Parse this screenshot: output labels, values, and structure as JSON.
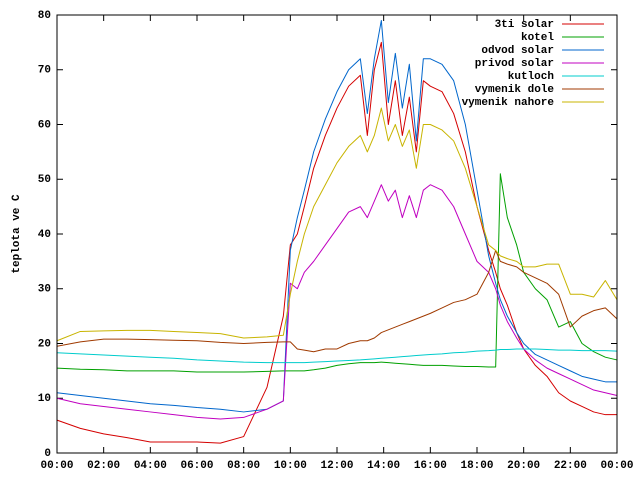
{
  "chart_data": {
    "type": "line",
    "ylabel": "teplota ve C",
    "x": [
      0,
      1,
      2,
      3,
      4,
      5,
      6,
      7,
      8,
      9,
      9.7,
      10,
      10.3,
      10.6,
      11,
      11.5,
      12,
      12.5,
      13,
      13.3,
      13.6,
      13.9,
      14.2,
      14.5,
      14.8,
      15.1,
      15.4,
      15.7,
      16,
      16.5,
      17,
      17.5,
      18,
      18.5,
      18.8,
      19,
      19.3,
      19.7,
      20,
      20.5,
      21,
      21.5,
      22,
      22.5,
      23,
      23.5,
      24
    ],
    "xlim": [
      0,
      24
    ],
    "xticks": [
      {
        "value": 0,
        "label": "00:00"
      },
      {
        "value": 2,
        "label": "02:00"
      },
      {
        "value": 4,
        "label": "04:00"
      },
      {
        "value": 6,
        "label": "06:00"
      },
      {
        "value": 8,
        "label": "08:00"
      },
      {
        "value": 10,
        "label": "10:00"
      },
      {
        "value": 12,
        "label": "12:00"
      },
      {
        "value": 14,
        "label": "14:00"
      },
      {
        "value": 16,
        "label": "16:00"
      },
      {
        "value": 18,
        "label": "18:00"
      },
      {
        "value": 20,
        "label": "20:00"
      },
      {
        "value": 22,
        "label": "22:00"
      },
      {
        "value": 24,
        "label": "00:00"
      }
    ],
    "ylim": [
      0,
      80
    ],
    "yticks": [
      0,
      10,
      20,
      30,
      40,
      50,
      60,
      70,
      80
    ],
    "legend": "upper right",
    "series": [
      {
        "name": "3ti solar",
        "color": "#d40000",
        "values": [
          6,
          4.5,
          3.5,
          2.8,
          2,
          2,
          2,
          1.8,
          3,
          12,
          25,
          38,
          40,
          45,
          52,
          58,
          63,
          67,
          69,
          58,
          70,
          75,
          60,
          68,
          58,
          65,
          55,
          68,
          67,
          66,
          62,
          55,
          45,
          37,
          33,
          30,
          27,
          22,
          19,
          16,
          14,
          11,
          9.5,
          8.5,
          7.5,
          7,
          7
        ]
      },
      {
        "name": "kotel",
        "color": "#00a000",
        "values": [
          15.5,
          15.3,
          15.2,
          15,
          15,
          15,
          14.8,
          14.8,
          14.8,
          14.9,
          15,
          15,
          15,
          15,
          15.2,
          15.5,
          16,
          16.3,
          16.5,
          16.5,
          16.5,
          16.6,
          16.5,
          16.4,
          16.3,
          16.2,
          16.1,
          16,
          16,
          16,
          15.9,
          15.8,
          15.8,
          15.7,
          15.7,
          51,
          43,
          38,
          33,
          30,
          28,
          23,
          24,
          20,
          18.5,
          17.5,
          17
        ]
      },
      {
        "name": "odvod solar",
        "color": "#0066cc",
        "values": [
          11,
          10.5,
          10,
          9.5,
          9,
          8.7,
          8.3,
          8,
          7.5,
          8,
          9.5,
          37,
          43,
          48,
          55,
          61,
          66,
          70,
          72,
          62,
          72,
          79,
          64,
          73,
          63,
          71,
          57,
          72,
          72,
          71,
          68,
          60,
          48,
          36,
          31,
          28,
          25,
          22,
          20,
          18,
          17,
          16,
          15,
          14,
          13.5,
          13,
          13
        ]
      },
      {
        "name": "privod solar",
        "color": "#c000c0",
        "values": [
          10,
          9,
          8.5,
          8,
          7.5,
          7,
          6.5,
          6.2,
          6.5,
          8,
          9.5,
          31,
          30,
          33,
          35,
          38,
          41,
          44,
          45,
          43,
          46,
          49,
          46,
          48,
          43,
          47,
          43,
          48,
          49,
          48,
          45,
          40,
          35,
          33,
          30,
          27,
          24,
          21,
          19,
          17,
          15.5,
          14.5,
          13.5,
          12.5,
          11.5,
          11,
          10.5
        ]
      },
      {
        "name": "kutloch",
        "color": "#00cccc",
        "values": [
          18.3,
          18.1,
          17.9,
          17.7,
          17.5,
          17.3,
          17,
          16.8,
          16.6,
          16.5,
          16.5,
          16.5,
          16.5,
          16.5,
          16.6,
          16.7,
          16.8,
          16.9,
          17,
          17.1,
          17.2,
          17.3,
          17.4,
          17.5,
          17.6,
          17.7,
          17.8,
          17.9,
          18,
          18.1,
          18.3,
          18.4,
          18.6,
          18.7,
          18.8,
          18.9,
          18.9,
          19,
          19,
          19,
          18.9,
          18.8,
          18.8,
          18.7,
          18.7,
          18.7,
          18.6
        ]
      },
      {
        "name": "vymenik dole",
        "color": "#a03a00",
        "values": [
          19.5,
          20.3,
          20.8,
          20.8,
          20.7,
          20.6,
          20.5,
          20.2,
          20,
          20.2,
          20.3,
          20.3,
          19,
          18.8,
          18.5,
          19,
          19,
          20,
          20.5,
          20.5,
          21,
          22,
          22.5,
          23,
          23.5,
          24,
          24.5,
          25,
          25.5,
          26.5,
          27.5,
          28,
          29,
          33,
          37,
          35,
          34.5,
          34,
          33,
          32,
          31,
          29,
          23,
          25,
          26,
          26.5,
          24.5
        ]
      },
      {
        "name": "vymenik nahore",
        "color": "#c8b400",
        "values": [
          20.5,
          22.2,
          22.3,
          22.4,
          22.4,
          22.2,
          22,
          21.8,
          21,
          21.2,
          21.5,
          29,
          35,
          40,
          45,
          49,
          53,
          56,
          58,
          55,
          58,
          63,
          57,
          60,
          56,
          59,
          52,
          60,
          60,
          59,
          57,
          52,
          45,
          38,
          37,
          36,
          35.5,
          35,
          34,
          34,
          34.5,
          34.5,
          29,
          29,
          28.5,
          31.5,
          28
        ]
      }
    ]
  }
}
